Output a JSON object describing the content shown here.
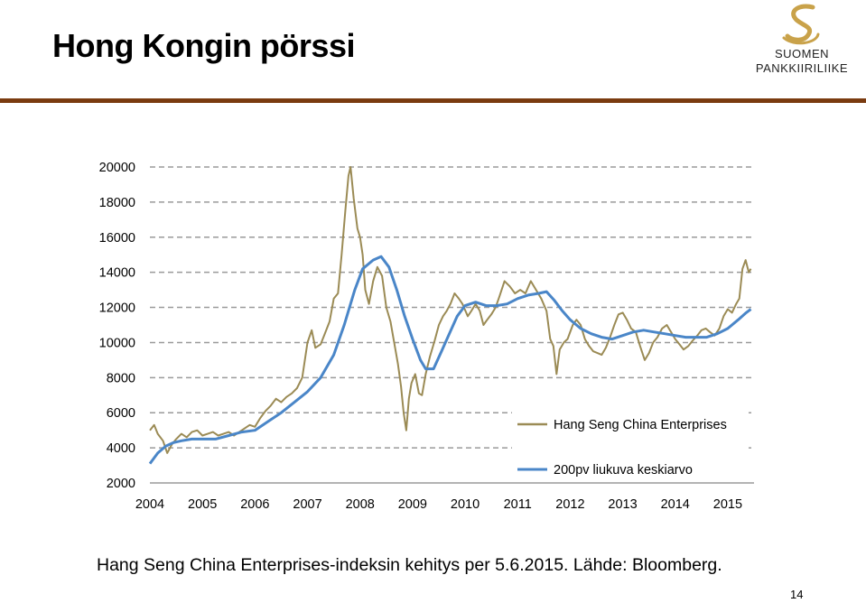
{
  "slide": {
    "title": "Hong Kongin pörssi",
    "caption": "Hang Seng China Enterprises-indeksin kehitys per 5.6.2015. Lähde: Bloomberg.",
    "page_number": "14",
    "rule_color": "#7a3b10"
  },
  "logo": {
    "line1": "SUOMEN",
    "line2": "PANKKIIRILIIKE",
    "icon": "s-swoosh-logo",
    "color": "#c9a24a"
  },
  "chart_data": {
    "type": "line",
    "ylim": [
      2000,
      20000
    ],
    "yticks": [
      2000,
      4000,
      6000,
      8000,
      10000,
      12000,
      14000,
      16000,
      18000,
      20000
    ],
    "xlim": [
      2004.0,
      2015.5
    ],
    "xticks": [
      "2004",
      "2005",
      "2006",
      "2007",
      "2008",
      "2009",
      "2010",
      "2011",
      "2012",
      "2013",
      "2014",
      "2015"
    ],
    "grid": "horizontal dashed",
    "legend_position": "bottom-right",
    "series": [
      {
        "name": "Hang Seng China Enterprises",
        "color": "#9b8b55",
        "points": [
          [
            2004.0,
            5000
          ],
          [
            2004.08,
            5300
          ],
          [
            2004.15,
            4800
          ],
          [
            2004.25,
            4400
          ],
          [
            2004.33,
            3700
          ],
          [
            2004.42,
            4200
          ],
          [
            2004.5,
            4500
          ],
          [
            2004.6,
            4800
          ],
          [
            2004.7,
            4600
          ],
          [
            2004.8,
            4900
          ],
          [
            2004.9,
            5000
          ],
          [
            2005.0,
            4700
          ],
          [
            2005.1,
            4800
          ],
          [
            2005.2,
            4900
          ],
          [
            2005.3,
            4700
          ],
          [
            2005.4,
            4800
          ],
          [
            2005.5,
            4900
          ],
          [
            2005.6,
            4700
          ],
          [
            2005.7,
            4900
          ],
          [
            2005.8,
            5100
          ],
          [
            2005.9,
            5300
          ],
          [
            2006.0,
            5200
          ],
          [
            2006.1,
            5700
          ],
          [
            2006.2,
            6100
          ],
          [
            2006.3,
            6400
          ],
          [
            2006.4,
            6800
          ],
          [
            2006.5,
            6600
          ],
          [
            2006.6,
            6900
          ],
          [
            2006.7,
            7100
          ],
          [
            2006.8,
            7400
          ],
          [
            2006.9,
            8000
          ],
          [
            2006.95,
            9000
          ],
          [
            2007.0,
            10000
          ],
          [
            2007.08,
            10700
          ],
          [
            2007.15,
            9700
          ],
          [
            2007.25,
            9900
          ],
          [
            2007.33,
            10500
          ],
          [
            2007.42,
            11200
          ],
          [
            2007.5,
            12500
          ],
          [
            2007.58,
            12800
          ],
          [
            2007.65,
            15000
          ],
          [
            2007.72,
            17500
          ],
          [
            2007.78,
            19500
          ],
          [
            2007.82,
            20000
          ],
          [
            2007.88,
            18200
          ],
          [
            2007.95,
            16500
          ],
          [
            2008.0,
            16000
          ],
          [
            2008.05,
            15000
          ],
          [
            2008.1,
            13000
          ],
          [
            2008.17,
            12200
          ],
          [
            2008.25,
            13500
          ],
          [
            2008.33,
            14300
          ],
          [
            2008.42,
            13800
          ],
          [
            2008.5,
            12000
          ],
          [
            2008.58,
            11200
          ],
          [
            2008.65,
            10000
          ],
          [
            2008.72,
            8800
          ],
          [
            2008.78,
            7500
          ],
          [
            2008.83,
            6000
          ],
          [
            2008.88,
            5000
          ],
          [
            2008.93,
            6800
          ],
          [
            2008.98,
            7700
          ],
          [
            2009.05,
            8200
          ],
          [
            2009.12,
            7100
          ],
          [
            2009.18,
            7000
          ],
          [
            2009.25,
            8200
          ],
          [
            2009.33,
            9200
          ],
          [
            2009.42,
            10100
          ],
          [
            2009.5,
            11000
          ],
          [
            2009.58,
            11500
          ],
          [
            2009.65,
            11800
          ],
          [
            2009.72,
            12200
          ],
          [
            2009.8,
            12800
          ],
          [
            2009.88,
            12500
          ],
          [
            2009.95,
            12200
          ],
          [
            2010.05,
            11500
          ],
          [
            2010.12,
            11800
          ],
          [
            2010.2,
            12200
          ],
          [
            2010.28,
            11800
          ],
          [
            2010.35,
            11000
          ],
          [
            2010.42,
            11300
          ],
          [
            2010.5,
            11600
          ],
          [
            2010.58,
            12000
          ],
          [
            2010.65,
            12600
          ],
          [
            2010.75,
            13500
          ],
          [
            2010.85,
            13200
          ],
          [
            2010.95,
            12800
          ],
          [
            2011.05,
            13000
          ],
          [
            2011.15,
            12800
          ],
          [
            2011.25,
            13500
          ],
          [
            2011.35,
            13000
          ],
          [
            2011.45,
            12500
          ],
          [
            2011.55,
            11800
          ],
          [
            2011.62,
            10200
          ],
          [
            2011.68,
            9800
          ],
          [
            2011.74,
            8200
          ],
          [
            2011.8,
            9600
          ],
          [
            2011.88,
            10000
          ],
          [
            2011.95,
            10200
          ],
          [
            2012.05,
            11000
          ],
          [
            2012.12,
            11300
          ],
          [
            2012.2,
            11000
          ],
          [
            2012.28,
            10200
          ],
          [
            2012.36,
            9800
          ],
          [
            2012.44,
            9500
          ],
          [
            2012.52,
            9400
          ],
          [
            2012.6,
            9300
          ],
          [
            2012.68,
            9700
          ],
          [
            2012.76,
            10300
          ],
          [
            2012.84,
            11000
          ],
          [
            2012.92,
            11600
          ],
          [
            2013.0,
            11700
          ],
          [
            2013.08,
            11300
          ],
          [
            2013.16,
            10800
          ],
          [
            2013.25,
            10600
          ],
          [
            2013.33,
            9800
          ],
          [
            2013.42,
            9000
          ],
          [
            2013.5,
            9400
          ],
          [
            2013.58,
            10000
          ],
          [
            2013.66,
            10300
          ],
          [
            2013.75,
            10800
          ],
          [
            2013.84,
            11000
          ],
          [
            2013.92,
            10600
          ],
          [
            2014.0,
            10200
          ],
          [
            2014.08,
            9900
          ],
          [
            2014.16,
            9600
          ],
          [
            2014.25,
            9800
          ],
          [
            2014.33,
            10100
          ],
          [
            2014.42,
            10400
          ],
          [
            2014.5,
            10700
          ],
          [
            2014.58,
            10800
          ],
          [
            2014.66,
            10600
          ],
          [
            2014.75,
            10400
          ],
          [
            2014.84,
            10800
          ],
          [
            2014.92,
            11500
          ],
          [
            2015.0,
            11900
          ],
          [
            2015.08,
            11700
          ],
          [
            2015.16,
            12200
          ],
          [
            2015.22,
            12500
          ],
          [
            2015.28,
            14200
          ],
          [
            2015.34,
            14700
          ],
          [
            2015.4,
            14000
          ],
          [
            2015.44,
            14200
          ]
        ]
      },
      {
        "name": "200pv liukuva keskiarvo",
        "color": "#4a86c8",
        "points": [
          [
            2004.0,
            3100
          ],
          [
            2004.15,
            3700
          ],
          [
            2004.3,
            4100
          ],
          [
            2004.45,
            4300
          ],
          [
            2004.6,
            4400
          ],
          [
            2004.8,
            4500
          ],
          [
            2005.0,
            4500
          ],
          [
            2005.25,
            4500
          ],
          [
            2005.5,
            4700
          ],
          [
            2005.75,
            4900
          ],
          [
            2006.0,
            5000
          ],
          [
            2006.25,
            5500
          ],
          [
            2006.5,
            6000
          ],
          [
            2006.75,
            6600
          ],
          [
            2007.0,
            7200
          ],
          [
            2007.25,
            8000
          ],
          [
            2007.5,
            9300
          ],
          [
            2007.7,
            11000
          ],
          [
            2007.9,
            13000
          ],
          [
            2008.05,
            14200
          ],
          [
            2008.25,
            14700
          ],
          [
            2008.4,
            14900
          ],
          [
            2008.55,
            14300
          ],
          [
            2008.7,
            13000
          ],
          [
            2008.85,
            11500
          ],
          [
            2009.0,
            10200
          ],
          [
            2009.15,
            9000
          ],
          [
            2009.25,
            8500
          ],
          [
            2009.4,
            8500
          ],
          [
            2009.55,
            9500
          ],
          [
            2009.7,
            10500
          ],
          [
            2009.85,
            11500
          ],
          [
            2010.0,
            12100
          ],
          [
            2010.2,
            12300
          ],
          [
            2010.4,
            12100
          ],
          [
            2010.6,
            12100
          ],
          [
            2010.8,
            12200
          ],
          [
            2011.0,
            12500
          ],
          [
            2011.2,
            12700
          ],
          [
            2011.4,
            12800
          ],
          [
            2011.55,
            12900
          ],
          [
            2011.7,
            12400
          ],
          [
            2011.85,
            11800
          ],
          [
            2012.0,
            11300
          ],
          [
            2012.2,
            10800
          ],
          [
            2012.4,
            10500
          ],
          [
            2012.6,
            10300
          ],
          [
            2012.8,
            10200
          ],
          [
            2013.0,
            10400
          ],
          [
            2013.2,
            10600
          ],
          [
            2013.4,
            10700
          ],
          [
            2013.6,
            10600
          ],
          [
            2013.8,
            10500
          ],
          [
            2014.0,
            10400
          ],
          [
            2014.2,
            10300
          ],
          [
            2014.4,
            10300
          ],
          [
            2014.6,
            10300
          ],
          [
            2014.8,
            10500
          ],
          [
            2015.0,
            10800
          ],
          [
            2015.2,
            11300
          ],
          [
            2015.35,
            11700
          ],
          [
            2015.44,
            11900
          ]
        ]
      }
    ]
  }
}
